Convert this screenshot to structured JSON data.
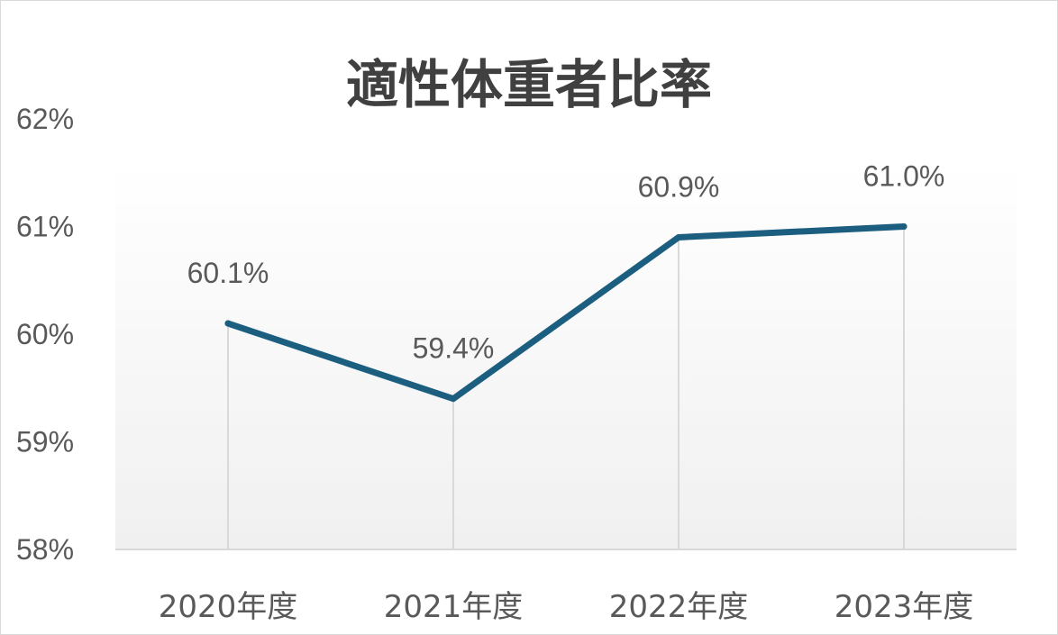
{
  "chart_data": {
    "type": "line",
    "title": "適性体重者比率",
    "categories": [
      "2020年度",
      "2021年度",
      "2022年度",
      "2023年度"
    ],
    "series": [
      {
        "values": [
          60.1,
          59.4,
          60.9,
          61.0
        ],
        "data_labels": [
          "60.1%",
          "59.4%",
          "60.9%",
          "61.0%"
        ]
      }
    ],
    "ylim": [
      58,
      62
    ],
    "y_ticks": [
      62,
      61,
      60,
      59,
      58
    ],
    "y_tick_labels": [
      "62%",
      "61%",
      "60%",
      "59%",
      "58%"
    ],
    "grid": "vertical drop lines",
    "legend": "none",
    "colors": {
      "line": "#1b5e80",
      "plot_gradient_top": "#ffffff",
      "plot_gradient_bottom": "#f0f0f0",
      "drop_line": "#d9d9d9",
      "axis": "#d9d9d9"
    }
  }
}
